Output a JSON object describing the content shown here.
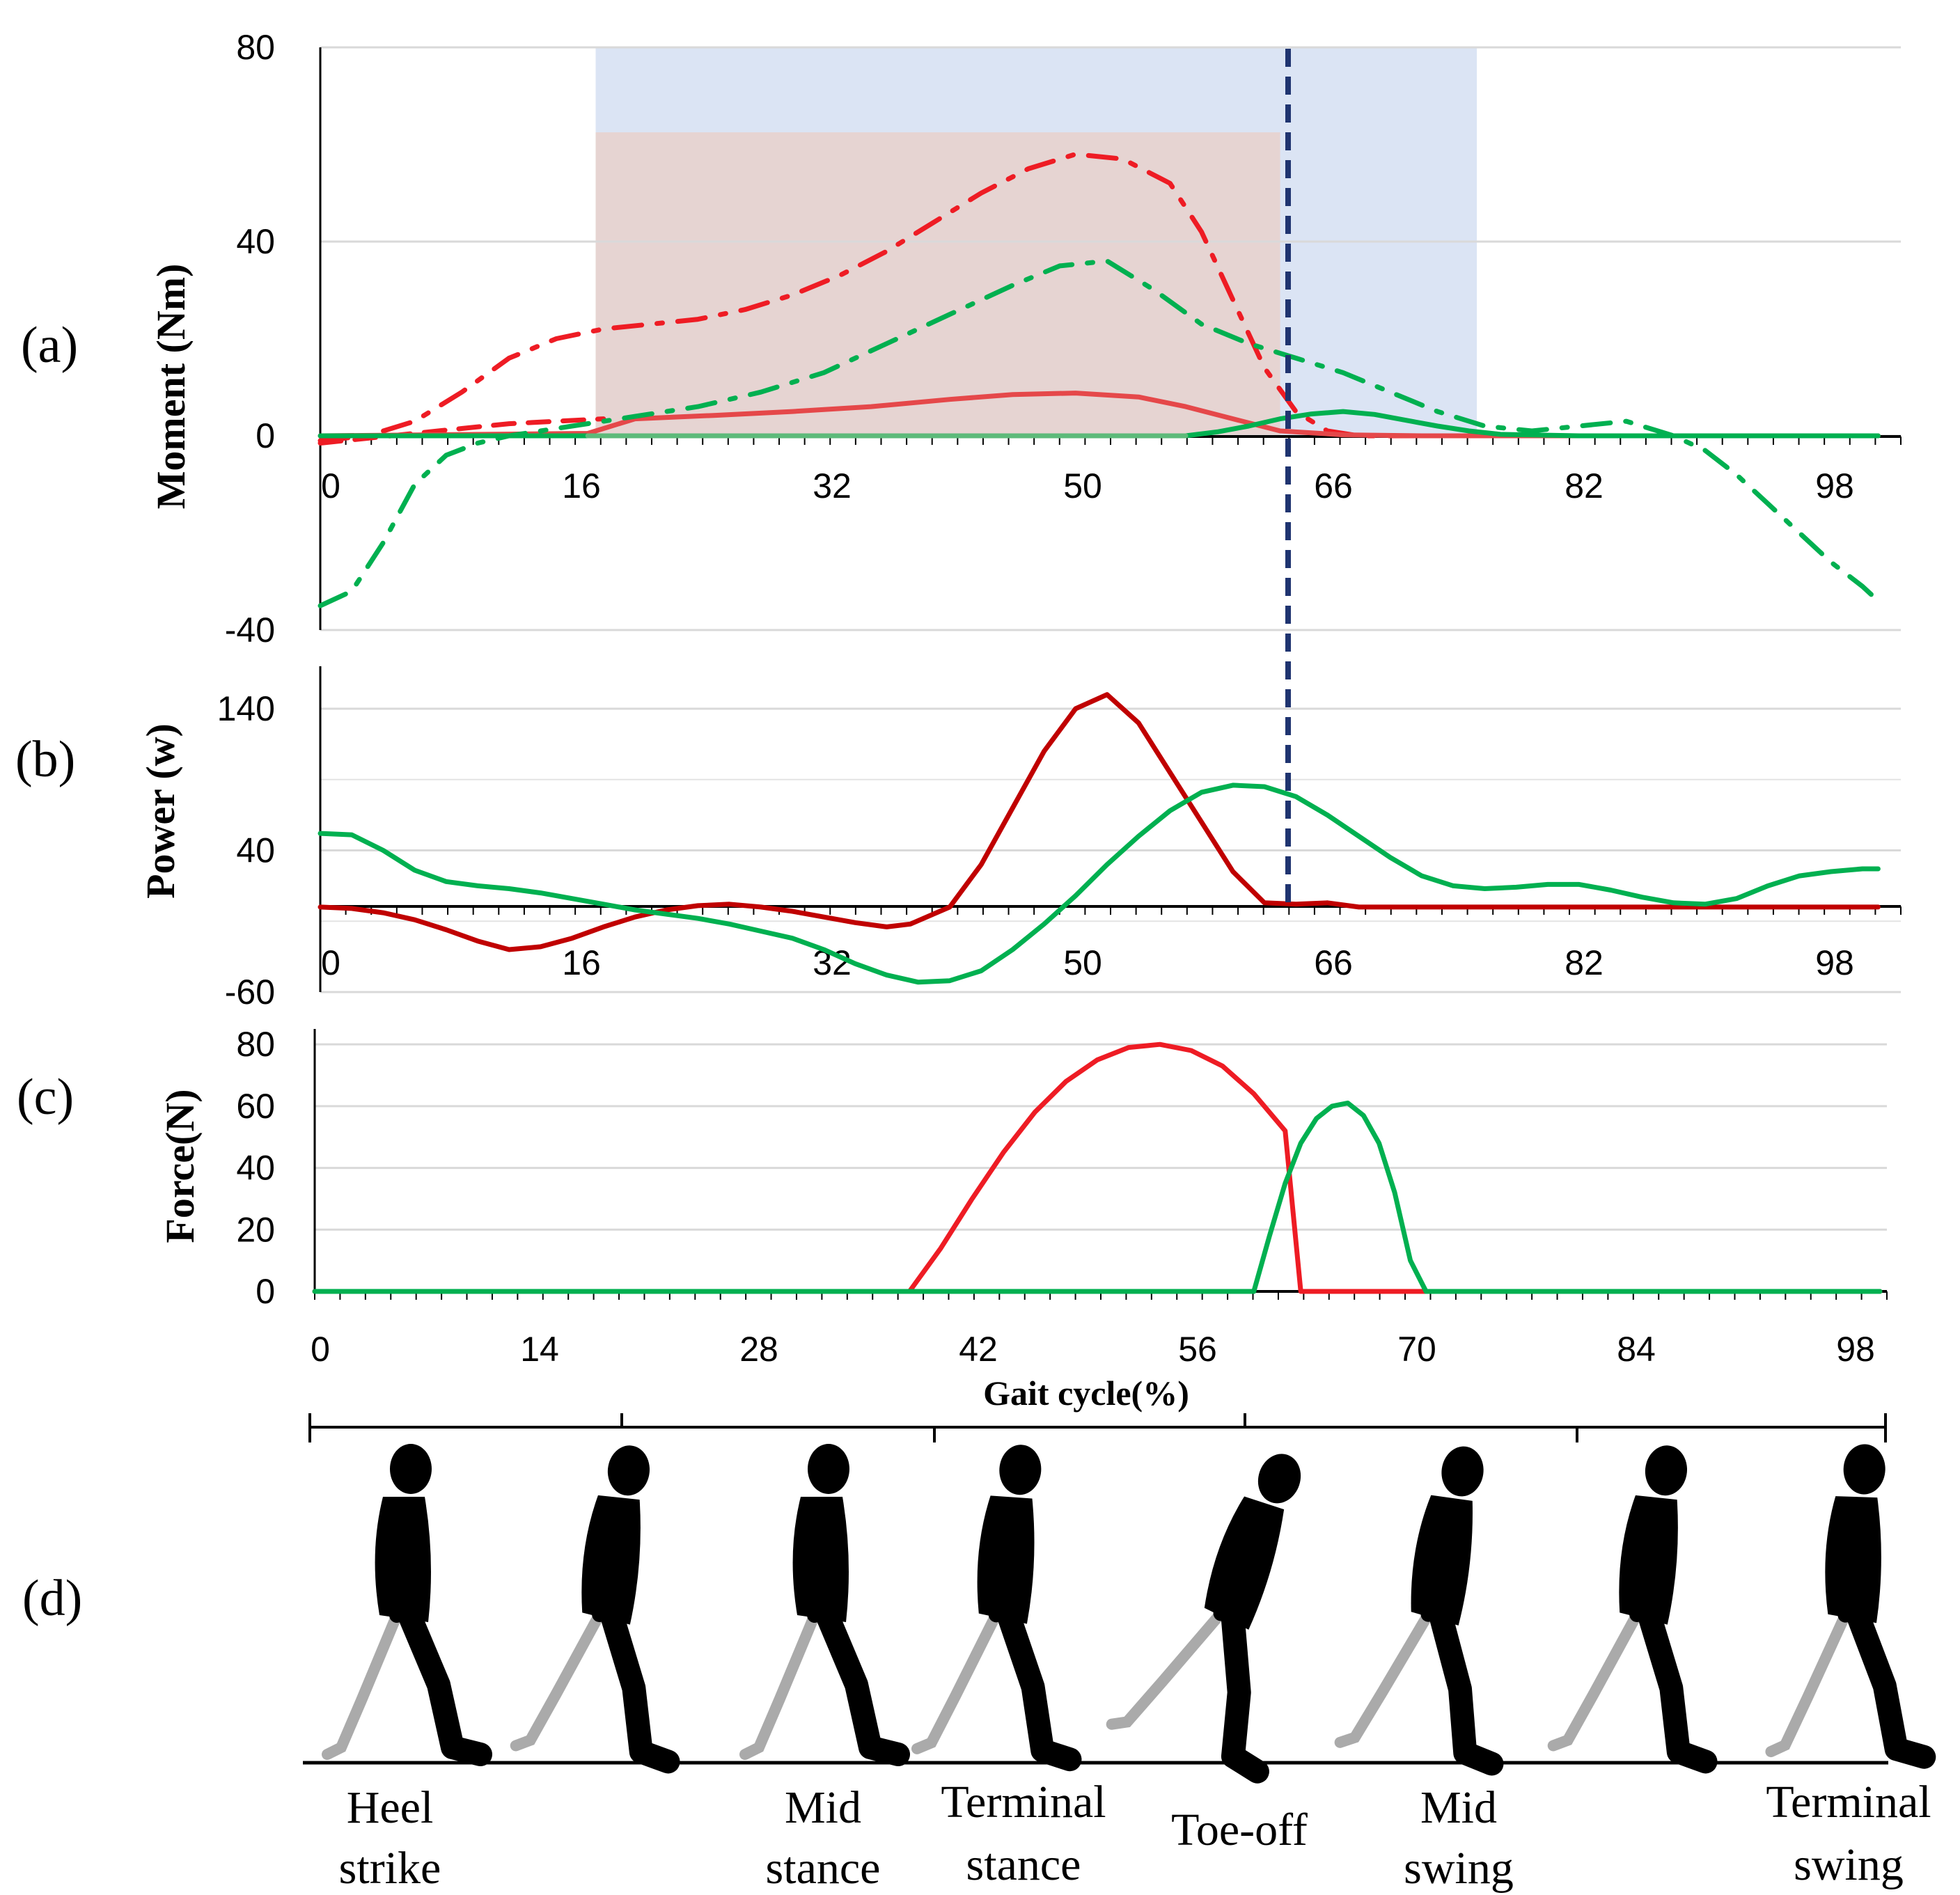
{
  "panel_labels": {
    "a": "(a)",
    "b": "(b)",
    "c": "(c)",
    "d": "(d)"
  },
  "colors": {
    "red": "#ee1c24",
    "light_red": "#e5484a",
    "dark_red": "#c00000",
    "green": "#00b050",
    "light_green": "#5dba7a",
    "navy": "#1f3470",
    "blue_band": "#dbe4f4",
    "tan_band": "#e6d4d2"
  },
  "chart_data": [
    {
      "type": "line",
      "panel": "(a)",
      "ylabel": "Moment (Nm)",
      "ylim": [
        -40,
        80
      ],
      "y_ticks": [
        "80",
        "40",
        "0",
        "-40"
      ],
      "xlim": [
        0,
        100
      ],
      "x_ticks": [
        "0",
        "16",
        "32",
        "50",
        "66",
        "82",
        "98"
      ],
      "shaded_regions": [
        {
          "name": "blue",
          "x": [
            17.5,
            73.5
          ],
          "y": [
            0,
            80
          ]
        },
        {
          "name": "tan",
          "x": [
            17.5,
            61
          ],
          "y": [
            0,
            62.5
          ]
        }
      ],
      "toe_off_line_x": 61,
      "series": [
        {
          "name": "red-dashdot",
          "style": "dashdot",
          "color": "#ee1c24",
          "x": [
            0,
            3,
            6,
            9,
            12,
            15,
            18,
            21,
            24,
            27,
            30,
            33,
            36,
            39,
            42,
            45,
            48,
            51,
            54,
            56,
            58,
            60,
            62,
            64,
            66,
            70,
            75,
            80,
            85,
            90,
            95,
            99
          ],
          "y": [
            -1,
            0,
            3,
            9,
            16,
            20,
            22,
            23,
            24,
            26,
            29,
            33,
            38,
            44,
            50,
            55,
            58,
            57,
            52,
            42,
            28,
            14,
            5,
            1,
            0,
            0,
            0,
            0,
            0,
            0,
            0,
            0
          ]
        },
        {
          "name": "red-dashed",
          "style": "dashed",
          "color": "#ee1c24",
          "x": [
            0,
            3,
            6,
            9,
            12,
            15,
            18
          ],
          "y": [
            -1.5,
            -0.5,
            0.5,
            1.5,
            2.5,
            3,
            3.5
          ]
        },
        {
          "name": "red-solid",
          "style": "solid",
          "color": "#e5484a",
          "x": [
            0,
            17,
            20,
            25,
            30,
            35,
            40,
            44,
            48,
            52,
            55,
            58,
            61,
            65,
            70,
            80,
            90,
            99
          ],
          "y": [
            0,
            0.5,
            3.5,
            4.2,
            5,
            6,
            7.5,
            8.5,
            8.8,
            8,
            6,
            3.5,
            1,
            0.2,
            0,
            0,
            0,
            0
          ]
        },
        {
          "name": "green-dashdot",
          "style": "dashdot",
          "color": "#00b050",
          "x": [
            0,
            2,
            4,
            6,
            8,
            10,
            12,
            14,
            16,
            18,
            20,
            24,
            28,
            32,
            36,
            40,
            44,
            47,
            50,
            53,
            56,
            59,
            62,
            65,
            68,
            71,
            74,
            77,
            80,
            83,
            85,
            86,
            88,
            90,
            92,
            94,
            96,
            98,
            99
          ],
          "y": [
            -35,
            -32,
            -22,
            -10,
            -4,
            -1.5,
            0,
            1,
            2,
            3,
            4,
            6,
            9,
            13,
            19,
            25,
            31,
            35,
            36,
            30,
            23,
            19,
            16,
            13,
            9,
            5,
            2,
            1,
            2,
            3,
            1,
            0,
            -3,
            -8,
            -14,
            -20,
            -26,
            -31,
            -34
          ]
        },
        {
          "name": "green-solid",
          "style": "solid",
          "color": "#00b050",
          "x": [
            0,
            55,
            57,
            59,
            61,
            63,
            65,
            67,
            69,
            71,
            73,
            75,
            80,
            90,
            99
          ],
          "y": [
            0,
            0,
            0.8,
            2,
            3.5,
            4.5,
            5,
            4.4,
            3.2,
            2,
            1,
            0.3,
            0,
            0,
            0
          ]
        },
        {
          "name": "green-flat",
          "style": "solid",
          "color": "#5dba7a",
          "x": [
            17,
            55
          ],
          "y": [
            0,
            0
          ]
        }
      ]
    },
    {
      "type": "line",
      "panel": "(b)",
      "ylabel": "Power (w)",
      "ylim": [
        -60,
        170
      ],
      "y_ticks": [
        "140",
        "40",
        "-60"
      ],
      "xlim": [
        0,
        100
      ],
      "x_ticks": [
        "0",
        "16",
        "32",
        "50",
        "66",
        "82",
        "98"
      ],
      "series": [
        {
          "name": "red-power",
          "color": "#c00000",
          "x": [
            0,
            2,
            4,
            6,
            8,
            10,
            12,
            14,
            16,
            18,
            20,
            22,
            24,
            26,
            28,
            30,
            32,
            34,
            36,
            37.5,
            40,
            42,
            44,
            46,
            48,
            50,
            52,
            54,
            56,
            58,
            60,
            62,
            64,
            66,
            70,
            80,
            90,
            99
          ],
          "y": [
            0,
            -1,
            -4,
            -9,
            -16,
            -24,
            -30,
            -28,
            -22,
            -14,
            -7,
            -2,
            1,
            2,
            0,
            -3,
            -7,
            -11,
            -14,
            -12,
            0,
            30,
            70,
            110,
            140,
            150,
            130,
            95,
            60,
            25,
            3,
            2,
            3,
            0,
            0,
            0,
            0,
            0
          ]
        },
        {
          "name": "green-power",
          "color": "#00b050",
          "x": [
            0,
            2,
            4,
            6,
            8,
            10,
            12,
            14,
            16,
            18,
            20,
            22,
            24,
            26,
            28,
            30,
            32,
            34,
            36,
            38,
            40,
            42,
            44,
            46,
            48,
            50,
            52,
            54,
            56,
            58,
            60,
            62,
            64,
            66,
            68,
            70,
            72,
            74,
            76,
            78,
            80,
            82,
            84,
            86,
            88,
            90,
            92,
            94,
            96,
            98,
            99
          ],
          "y": [
            52,
            51,
            40,
            26,
            18,
            15,
            13,
            10,
            6,
            2,
            -2,
            -5,
            -8,
            -12,
            -17,
            -22,
            -30,
            -40,
            -48,
            -53,
            -52,
            -45,
            -30,
            -12,
            8,
            30,
            50,
            68,
            81,
            86,
            85,
            78,
            65,
            50,
            35,
            22,
            15,
            13,
            14,
            16,
            16,
            12,
            7,
            3,
            2,
            6,
            15,
            22,
            25,
            27,
            27
          ]
        }
      ]
    },
    {
      "type": "line",
      "panel": "(c)",
      "ylabel": "Force(N)",
      "xlabel": "Gait cycle(%)",
      "ylim": [
        0,
        85
      ],
      "y_ticks": [
        "80",
        "60",
        "40",
        "20",
        "0"
      ],
      "xlim": [
        0,
        100
      ],
      "x_ticks": [
        "0",
        "14",
        "28",
        "42",
        "56",
        "70",
        "84",
        "98"
      ],
      "series": [
        {
          "name": "red-force",
          "color": "#ee1c24",
          "x": [
            0,
            38,
            40,
            42,
            44,
            46,
            48,
            50,
            52,
            54,
            56,
            58,
            60,
            62,
            63,
            65,
            68,
            70,
            100
          ],
          "y": [
            0,
            0,
            14,
            30,
            45,
            58,
            68,
            75,
            79,
            80,
            78,
            73,
            64,
            52,
            0,
            0,
            0,
            0,
            0
          ]
        },
        {
          "name": "green-force",
          "color": "#00b050",
          "x": [
            0,
            60,
            61,
            62,
            63,
            64,
            65,
            66,
            67,
            68,
            69,
            70,
            71,
            100
          ],
          "y": [
            0,
            0,
            18,
            35,
            48,
            56,
            60,
            61,
            57,
            48,
            32,
            10,
            0,
            0
          ]
        }
      ]
    }
  ],
  "phases": [
    {
      "line1": "Heel",
      "line2": "strike"
    },
    {
      "line1": "Mid",
      "line2": "stance"
    },
    {
      "line1": "Terminal",
      "line2": "stance"
    },
    {
      "line1": "Toe-off",
      "line2": ""
    },
    {
      "line1": "Mid",
      "line2": "swing"
    },
    {
      "line1": "Terminal",
      "line2": "swing"
    }
  ]
}
